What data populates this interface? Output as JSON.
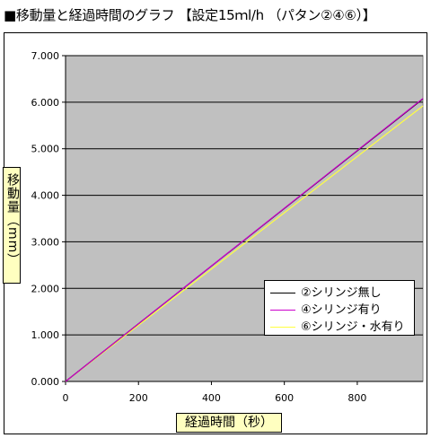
{
  "title": "■移動量と経過時間のグラフ 【設定15ｍl/h （パタン②④⑥）】",
  "chart_data": {
    "type": "line",
    "xlabel": "経過時間（秒）",
    "ylabel": "移動量（mm）",
    "xlim": [
      0,
      980
    ],
    "ylim": [
      0,
      7
    ],
    "x_ticks": [
      "0",
      "200",
      "400",
      "600",
      "800"
    ],
    "x_tick_values": [
      0,
      200,
      400,
      600,
      800
    ],
    "y_ticks": [
      "0.000",
      "1.000",
      "2.000",
      "3.000",
      "4.000",
      "5.000",
      "6.000",
      "7.000"
    ],
    "y_tick_values": [
      0,
      1,
      2,
      3,
      4,
      5,
      6,
      7
    ],
    "grid": "horizontal",
    "plot_background": "#c0c0c0",
    "legend_position": "bottom-right",
    "series": [
      {
        "name": "②シリンジ無し",
        "color": "#000000",
        "x": [
          0,
          980
        ],
        "y": [
          0,
          6.07
        ]
      },
      {
        "name": "④シリンジ有り",
        "color": "#cc00cc",
        "x": [
          0,
          980
        ],
        "y": [
          0,
          6.08
        ]
      },
      {
        "name": "⑥シリンジ・水有り",
        "color": "#ffff40",
        "x": [
          0,
          980
        ],
        "y": [
          0,
          5.92
        ]
      }
    ]
  }
}
